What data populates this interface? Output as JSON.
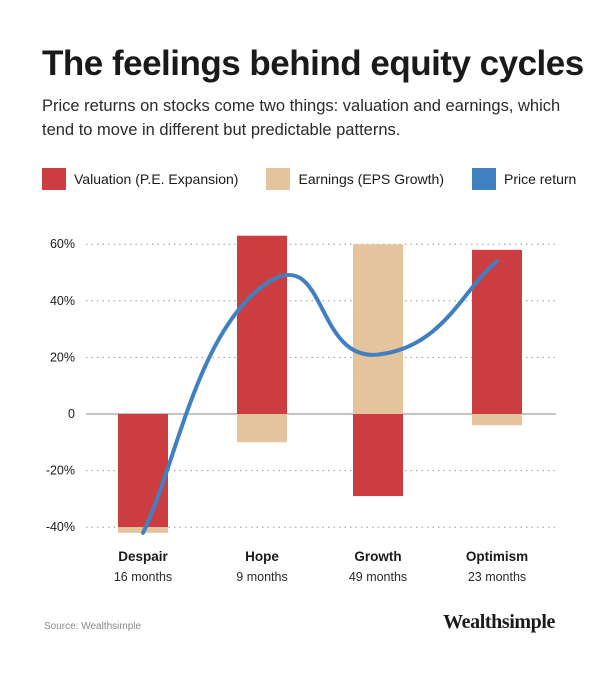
{
  "header": {
    "title": "The feelings behind equity cycles",
    "subtitle": "Price returns on stocks come two things: valuation and earnings, which tend to move in different but predictable patterns."
  },
  "legend": [
    {
      "label": "Valuation (P.E. Expansion)",
      "color": "#cc3d42"
    },
    {
      "label": "Earnings (EPS Growth)",
      "color": "#e4c49c"
    },
    {
      "label": "Price return",
      "color": "#4180c0"
    }
  ],
  "chart_data": {
    "type": "bar",
    "stacked": true,
    "categories": [
      "Despair",
      "Hope",
      "Growth",
      "Optimism"
    ],
    "category_durations": [
      "16 months",
      "9 months",
      "49 months",
      "23 months"
    ],
    "series": [
      {
        "name": "Valuation (P.E. Expansion)",
        "values": [
          -40,
          63,
          -29,
          58
        ],
        "color": "#cc3d42"
      },
      {
        "name": "Earnings (EPS Growth)",
        "values": [
          -2,
          -10,
          60,
          -4
        ],
        "color": "#e4c49c"
      },
      {
        "name": "Price return",
        "type": "line",
        "values": [
          -42,
          45,
          21,
          54
        ],
        "color": "#4180c0"
      }
    ],
    "ylim": [
      -42,
      65
    ],
    "yticks": [
      -40,
      -20,
      0,
      20,
      40,
      60
    ],
    "ytick_labels": [
      "-40%",
      "-20%",
      "0",
      "20%",
      "40%",
      "60%"
    ],
    "grid": true
  },
  "footer": {
    "source": "Source: Wealthsimple",
    "brand": "Wealthsimple"
  }
}
